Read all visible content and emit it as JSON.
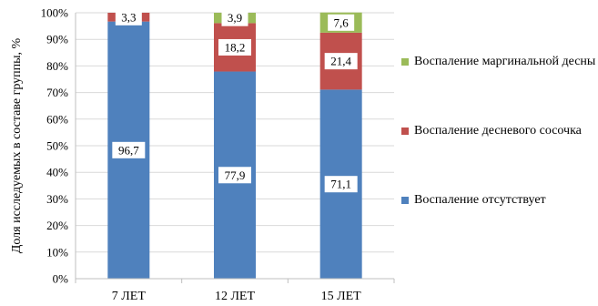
{
  "chart_data": {
    "type": "stacked-bar",
    "categories": [
      "7 ЛЕТ",
      "12 ЛЕТ",
      "15 ЛЕТ"
    ],
    "series": [
      {
        "name": "Воспаление отсутствует",
        "color": "#4f81bd",
        "values": [
          96.7,
          77.9,
          71.1
        ],
        "labels": [
          "96,7",
          "77,9",
          "71,1"
        ]
      },
      {
        "name": "Воспаление десневого сосочка",
        "color": "#c0504d",
        "values": [
          3.3,
          18.2,
          21.4
        ],
        "labels": [
          "3,3",
          "18,2",
          "21,4"
        ]
      },
      {
        "name": "Воспаление маргинальной десны",
        "color": "#9bbb59",
        "values": [
          0,
          3.9,
          7.6
        ],
        "labels": [
          "",
          "3,9",
          "7,6"
        ]
      }
    ],
    "legend_order": [
      2,
      1,
      0
    ],
    "ylabel": "Доля исследуемых в составе группы, %",
    "ylim": [
      0,
      100
    ],
    "yticks": [
      "0%",
      "10%",
      "20%",
      "30%",
      "40%",
      "50%",
      "60%",
      "70%",
      "80%",
      "90%",
      "100%"
    ],
    "grid": true,
    "legend": "right"
  }
}
